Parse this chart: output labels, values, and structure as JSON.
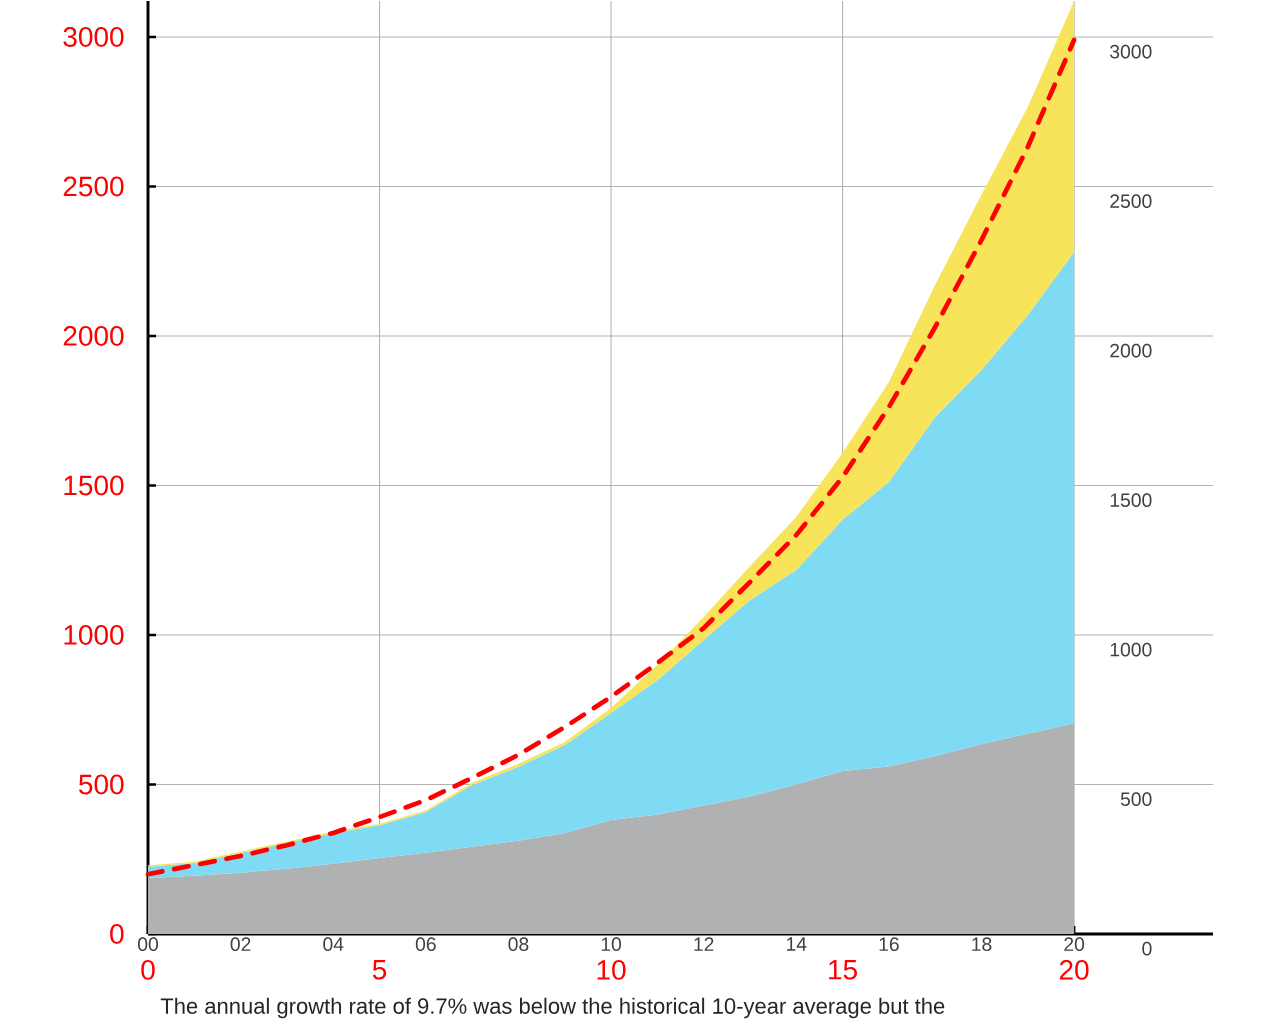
{
  "chart_data": {
    "type": "area",
    "stacked": true,
    "x": [
      0,
      1,
      2,
      3,
      4,
      5,
      6,
      7,
      8,
      9,
      10,
      11,
      12,
      13,
      14,
      15,
      16,
      17,
      18,
      19,
      20
    ],
    "xlim": [
      0,
      23
    ],
    "ylim": [
      0,
      3120
    ],
    "xticks": [
      0,
      5,
      10,
      15,
      20
    ],
    "yticks": [
      0,
      500,
      1000,
      1500,
      2000,
      2500,
      3000
    ],
    "x2lim": [
      0,
      23
    ],
    "x2ticks": [
      {
        "value": 0,
        "label": "00"
      },
      {
        "value": 2,
        "label": "02"
      },
      {
        "value": 4,
        "label": "04"
      },
      {
        "value": 6,
        "label": "06"
      },
      {
        "value": 8,
        "label": "08"
      },
      {
        "value": 10,
        "label": "10"
      },
      {
        "value": 12,
        "label": "12"
      },
      {
        "value": 14,
        "label": "14"
      },
      {
        "value": 16,
        "label": "16"
      },
      {
        "value": 18,
        "label": "18"
      },
      {
        "value": 20,
        "label": "20"
      }
    ],
    "y2lim": [
      0,
      3120
    ],
    "y2ticks": [
      0,
      500,
      1000,
      1500,
      2000,
      2500,
      3000
    ],
    "grid": true,
    "series": [
      {
        "color": "#b0b1b3",
        "values": [
          187,
          195,
          205,
          218,
          235,
          254,
          272,
          292,
          312,
          338,
          381,
          400,
          430,
          460,
          500,
          545,
          560,
          595,
          635,
          670,
          705
        ]
      },
      {
        "color": "#7fdbf3",
        "values": [
          38,
          42,
          66,
          86,
          103,
          110,
          136,
          206,
          247,
          294,
          358,
          449,
          553,
          657,
          717,
          840,
          952,
          1134,
          1251,
          1400,
          1576
        ]
      },
      {
        "color": "#f8e45a",
        "values": [
          5,
          5,
          5,
          5,
          5,
          5,
          5,
          8,
          10,
          10,
          17,
          51,
          77,
          113,
          178,
          224,
          334,
          442,
          586,
          696,
          839
        ]
      },
      {
        "type": "line",
        "color": "#ff0000",
        "line_style": "dashed",
        "values": [
          200,
          230,
          261,
          297,
          338,
          391,
          448,
          522,
          599,
          692,
          793,
          906,
          1023,
          1177,
          1334,
          1528,
          1762,
          2030,
          2321,
          2632,
          2990
        ]
      }
    ],
    "annotations": [
      "The annual growth rate of 9.7% was below the historical 10-year average but the"
    ]
  }
}
